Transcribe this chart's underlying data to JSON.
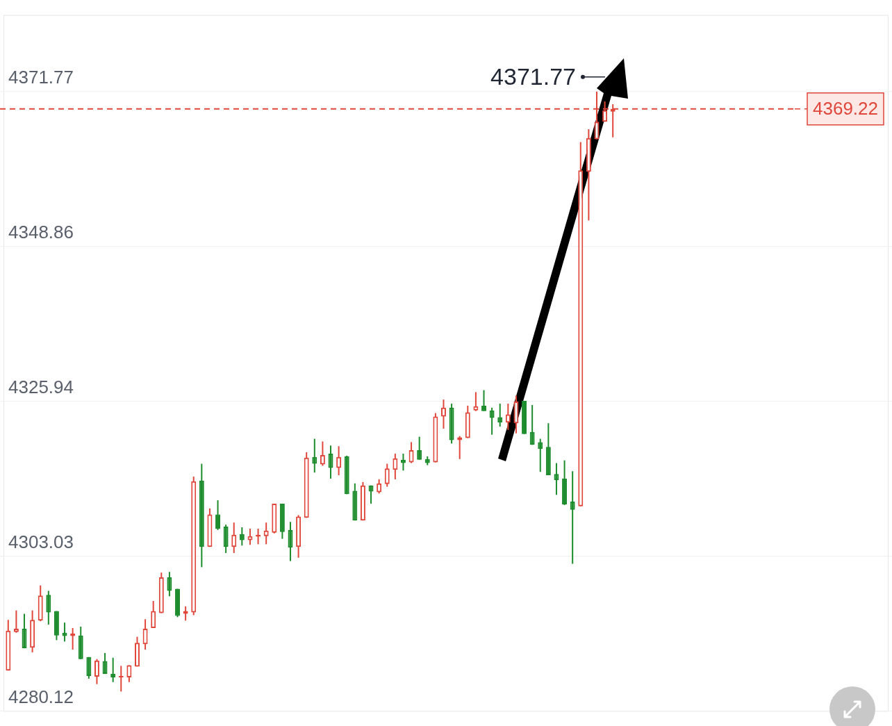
{
  "chart_data": {
    "type": "candlestick",
    "categories": [
      null,
      null,
      null,
      null,
      null,
      null,
      null,
      null,
      null,
      null,
      null,
      null,
      null,
      null,
      null,
      null,
      null,
      null,
      null,
      null,
      null,
      null,
      null,
      null,
      null,
      null,
      null,
      null,
      null,
      null,
      null,
      null,
      null,
      null,
      null,
      null,
      null,
      null,
      null,
      null,
      null,
      null,
      null,
      null,
      null,
      null,
      null,
      null,
      null,
      null,
      null,
      null,
      null,
      null,
      null,
      null,
      null,
      null,
      null,
      null,
      null,
      null,
      null,
      null,
      null,
      null,
      null,
      null,
      null,
      null,
      null,
      null,
      null,
      null,
      null,
      null
    ],
    "ohlc": [
      [
        4286.1,
        4293.6,
        4286.1,
        4292.0
      ],
      [
        4291.8,
        4295.0,
        4291.7,
        4292.3
      ],
      [
        4292.3,
        4294.5,
        4289.4,
        4289.4
      ],
      [
        4289.5,
        4295.0,
        4288.8,
        4293.6
      ],
      [
        4293.5,
        4298.7,
        4293.4,
        4297.2
      ],
      [
        4297.3,
        4297.9,
        4292.9,
        4294.7
      ],
      [
        4294.9,
        4294.9,
        4290.6,
        4291.3
      ],
      [
        4291.7,
        4293.2,
        4290.4,
        4291.2
      ],
      [
        4291.2,
        4292.4,
        4289.2,
        4291.6
      ],
      [
        4291.3,
        4292.6,
        4287.8,
        4287.8
      ],
      [
        4288.1,
        4288.1,
        4284.9,
        4285.3
      ],
      [
        4285.2,
        4287.8,
        4284.1,
        4287.6
      ],
      [
        4287.5,
        4288.7,
        4285.6,
        4285.6
      ],
      [
        4285.6,
        4288.0,
        4284.4,
        4285.1
      ],
      [
        4285.1,
        4286.8,
        4283.0,
        4285.3
      ],
      [
        4285.1,
        4286.9,
        4284.4,
        4286.9
      ],
      [
        4286.7,
        4291.1,
        4286.7,
        4290.2
      ],
      [
        4290.0,
        4293.7,
        4289.2,
        4292.3
      ],
      [
        4292.4,
        4296.4,
        4292.4,
        4294.9
      ],
      [
        4294.6,
        4300.6,
        4294.6,
        4299.9
      ],
      [
        4299.9,
        4300.7,
        4297.1,
        4297.9
      ],
      [
        4298.2,
        4298.2,
        4294.0,
        4294.2
      ],
      [
        4294.5,
        4295.6,
        4293.5,
        4294.9
      ],
      [
        4294.7,
        4314.8,
        4294.3,
        4314.1
      ],
      [
        4314.2,
        4316.7,
        4301.4,
        4304.4
      ],
      [
        4304.4,
        4310.1,
        4304.4,
        4309.2
      ],
      [
        4309.2,
        4311.3,
        4306.9,
        4307.1
      ],
      [
        4307.4,
        4307.7,
        4303.5,
        4304.4
      ],
      [
        4304.4,
        4308.0,
        4303.5,
        4306.2
      ],
      [
        4306.3,
        4307.3,
        4304.6,
        4305.4
      ],
      [
        4305.4,
        4307.1,
        4304.7,
        4306.0
      ],
      [
        4305.9,
        4307.1,
        4304.8,
        4306.2
      ],
      [
        4306.0,
        4308.0,
        4304.8,
        4306.8
      ],
      [
        4306.5,
        4310.8,
        4306.4,
        4310.8
      ],
      [
        4310.8,
        4310.8,
        4305.6,
        4306.6
      ],
      [
        4306.9,
        4308.1,
        4302.3,
        4304.3
      ],
      [
        4304.4,
        4309.1,
        4302.8,
        4308.9
      ],
      [
        4308.7,
        4318.4,
        4308.7,
        4317.6
      ],
      [
        4317.7,
        4320.4,
        4315.4,
        4316.7
      ],
      [
        4316.6,
        4320.0,
        4316.4,
        4318.0
      ],
      [
        4318.2,
        4319.4,
        4314.5,
        4316.1
      ],
      [
        4316.1,
        4319.3,
        4315.0,
        4317.7
      ],
      [
        4317.8,
        4317.9,
        4312.2,
        4312.2
      ],
      [
        4312.7,
        4313.8,
        4308.3,
        4308.3
      ],
      [
        4308.3,
        4314.0,
        4308.3,
        4313.5
      ],
      [
        4313.5,
        4313.5,
        4310.8,
        4312.6
      ],
      [
        4312.5,
        4314.4,
        4312.3,
        4313.8
      ],
      [
        4313.7,
        4316.7,
        4313.3,
        4316.0
      ],
      [
        4315.8,
        4318.2,
        4314.4,
        4317.5
      ],
      [
        4317.3,
        4318.2,
        4315.7,
        4316.8
      ],
      [
        4316.9,
        4319.9,
        4316.8,
        4318.7
      ],
      [
        4318.7,
        4320.7,
        4317.3,
        4317.3
      ],
      [
        4317.4,
        4317.8,
        4316.5,
        4316.8
      ],
      [
        4316.9,
        4324.2,
        4316.9,
        4323.7
      ],
      [
        4323.7,
        4326.2,
        4321.9,
        4325.0
      ],
      [
        4325.0,
        4325.6,
        4319.7,
        4320.2
      ],
      [
        4320.2,
        4320.8,
        4317.4,
        4320.6
      ],
      [
        4320.5,
        4325.3,
        4320.5,
        4324.3
      ],
      [
        4324.6,
        4327.3,
        4324.5,
        4325.2
      ],
      [
        4325.3,
        4327.6,
        4324.5,
        4324.5
      ],
      [
        4324.6,
        4325.0,
        4321.0,
        4323.5
      ],
      [
        4323.6,
        4325.6,
        4322.2,
        4322.8
      ],
      [
        4322.8,
        4325.6,
        4321.7,
        4324.0
      ],
      [
        4322.7,
        4326.8,
        4321.2,
        4325.9
      ],
      [
        4326.0,
        4326.0,
        4321.1,
        4321.1
      ],
      [
        4321.4,
        4325.4,
        4319.5,
        4319.5
      ],
      [
        4319.9,
        4320.4,
        4315.5,
        4318.9
      ],
      [
        4319.2,
        4322.7,
        4315.0,
        4315.0
      ],
      [
        4315.2,
        4316.8,
        4312.1,
        4314.3
      ],
      [
        4314.5,
        4317.2,
        4310.6,
        4310.7
      ],
      [
        4311.1,
        4315.6,
        4301.9,
        4309.9
      ],
      [
        4310.4,
        4364.3,
        4310.4,
        4360.1
      ],
      [
        4359.9,
        4366.2,
        4352.7,
        4364.9
      ],
      [
        4364.7,
        4371.77,
        4364.7,
        4367.3
      ],
      [
        4367.3,
        4370.3,
        4367.3,
        4369.0
      ],
      [
        4368.8,
        4369.9,
        4365.0,
        4369.22
      ]
    ],
    "colors": [
      "#e0463a",
      "#e0463a",
      "#1c8c2c",
      "#e0463a",
      "#e0463a",
      "#1c8c2c",
      "#1c8c2c",
      "#1c8c2c",
      "#e0463a",
      "#1c8c2c",
      "#1c8c2c",
      "#e0463a",
      "#1c8c2c",
      "#1c8c2c",
      "#e0463a",
      "#e0463a",
      "#e0463a",
      "#e0463a",
      "#e0463a",
      "#e0463a",
      "#1c8c2c",
      "#1c8c2c",
      "#e0463a",
      "#e0463a",
      "#1c8c2c",
      "#e0463a",
      "#1c8c2c",
      "#1c8c2c",
      "#e0463a",
      "#1c8c2c",
      "#e0463a",
      "#e0463a",
      "#e0463a",
      "#e0463a",
      "#1c8c2c",
      "#1c8c2c",
      "#e0463a",
      "#e0463a",
      "#1c8c2c",
      "#e0463a",
      "#1c8c2c",
      "#e0463a",
      "#1c8c2c",
      "#1c8c2c",
      "#e0463a",
      "#1c8c2c",
      "#e0463a",
      "#e0463a",
      "#e0463a",
      "#1c8c2c",
      "#e0463a",
      "#1c8c2c",
      "#1c8c2c",
      "#e0463a",
      "#e0463a",
      "#1c8c2c",
      "#e0463a",
      "#e0463a",
      "#e0463a",
      "#1c8c2c",
      "#1c8c2c",
      "#1c8c2c",
      "#e0463a",
      "#e0463a",
      "#1c8c2c",
      "#1c8c2c",
      "#1c8c2c",
      "#1c8c2c",
      "#1c8c2c",
      "#1c8c2c",
      "#1c8c2c",
      "#e0463a",
      "#e0463a",
      "#e0463a",
      "#e0463a",
      "#e0463a"
    ],
    "ylim": [
      4280.12,
      4383.1
    ],
    "yticks": [
      4280.12,
      4303.03,
      4325.94,
      4348.86,
      4371.77
    ],
    "grid": "y",
    "tick_labels": "y",
    "ref_lines": [
      {
        "axis": "y",
        "value": 4369.22,
        "label": "4369.22",
        "color": "#e0463a",
        "line_style": "dashed"
      }
    ],
    "annotations": [
      "4371.77"
    ]
  }
}
